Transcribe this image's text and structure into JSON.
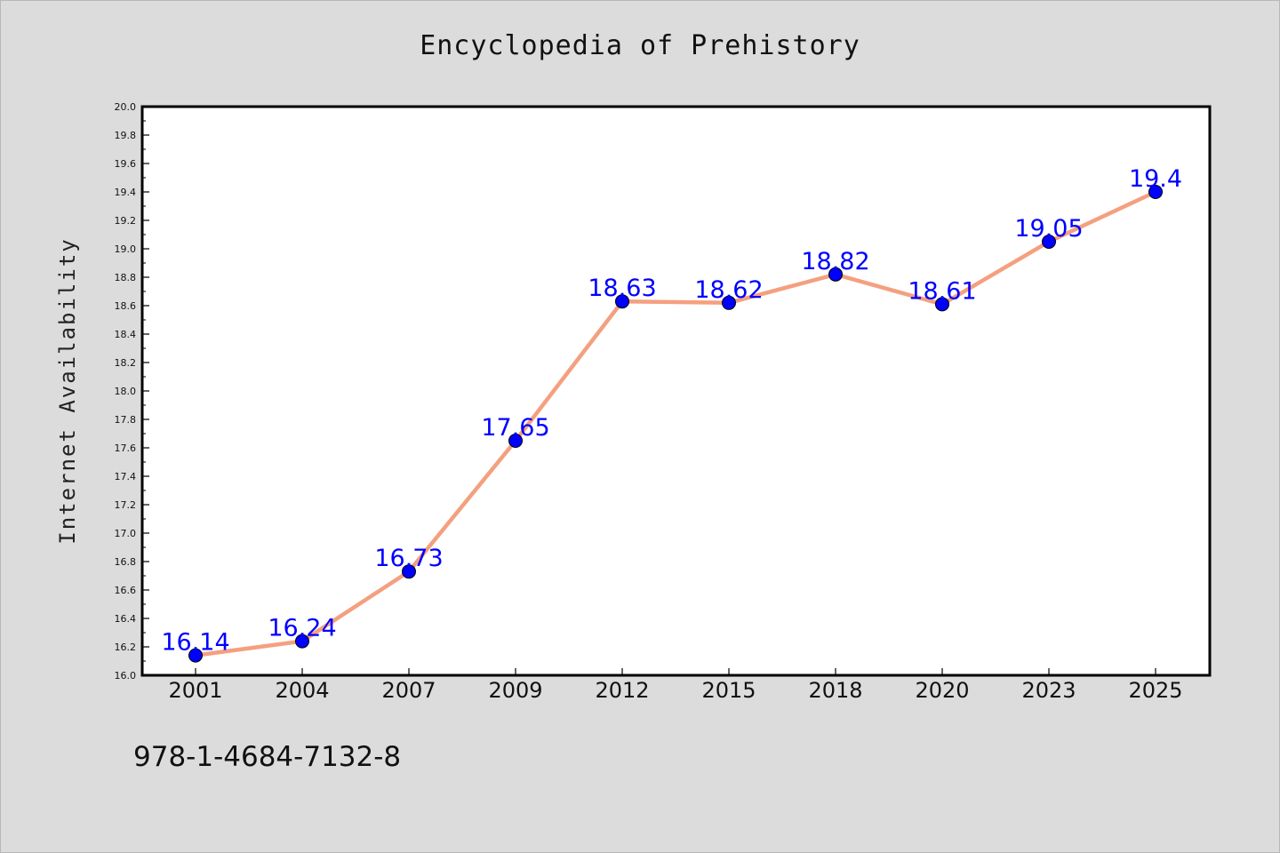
{
  "chart_data": {
    "type": "line",
    "title": "Encyclopedia of Prehistory",
    "xlabel": "",
    "ylabel": "Internet Availability",
    "categories": [
      "2001",
      "2004",
      "2007",
      "2009",
      "2012",
      "2015",
      "2018",
      "2020",
      "2023",
      "2025"
    ],
    "series": [
      {
        "values": [
          16.14,
          16.24,
          16.73,
          17.65,
          18.63,
          18.62,
          18.82,
          18.61,
          19.05,
          19.4
        ],
        "data_labels": [
          "16.14",
          "16.24",
          "16.73",
          "17.65",
          "18.63",
          "18.62",
          "18.82",
          "18.61",
          "19.05",
          "19.4"
        ],
        "line_color": "#f4a07f",
        "marker_color": "#0000ff",
        "label_color": "#0000ff"
      }
    ],
    "ylim": [
      16.0,
      20.0
    ],
    "yticks": [
      "16.0",
      "16.2",
      "16.4",
      "16.6",
      "16.8",
      "17.0",
      "17.2",
      "17.4",
      "17.6",
      "17.8",
      "18.0",
      "18.2",
      "18.4",
      "18.6",
      "18.8",
      "19.0",
      "19.2",
      "19.4",
      "19.6",
      "19.8",
      "20.0"
    ],
    "grid": false,
    "legend": "none"
  },
  "footer": {
    "isbn": "978-1-4684-7132-8"
  },
  "colors": {
    "background": "#dcdcdc",
    "plot_area": "#ffffff"
  }
}
